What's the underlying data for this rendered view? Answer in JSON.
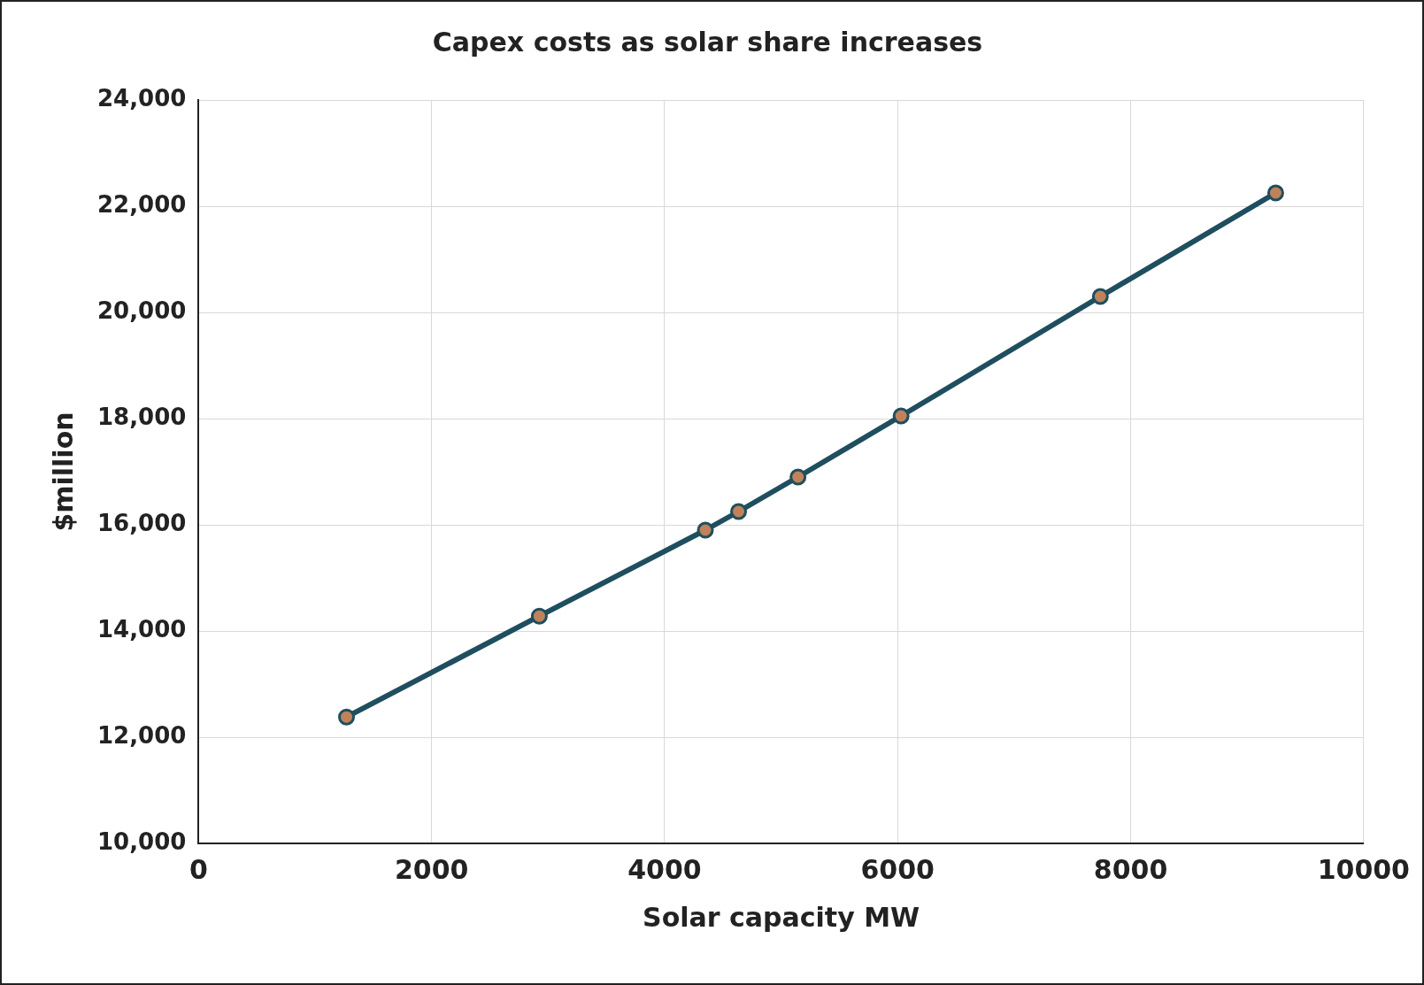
{
  "chart_data": {
    "type": "line",
    "title": "Capex costs as solar share increases",
    "xlabel": "Solar capacity MW",
    "ylabel": "$million",
    "x": [
      1270,
      2925,
      4350,
      4635,
      5145,
      6030,
      7740,
      9245
    ],
    "series": [
      {
        "color": "#1f4e5f",
        "values": [
          12380,
          14280,
          15900,
          16250,
          16900,
          18050,
          20300,
          22250
        ]
      }
    ],
    "xlim": [
      0,
      10000
    ],
    "xticks": [
      0,
      2000,
      4000,
      6000,
      8000,
      10000
    ],
    "ylim": [
      10000,
      24000
    ],
    "yticks": [
      {
        "value": 10000,
        "label": "10,000"
      },
      {
        "value": 12000,
        "label": "12,000"
      },
      {
        "value": 14000,
        "label": "14,000"
      },
      {
        "value": 16000,
        "label": "16,000"
      },
      {
        "value": 18000,
        "label": "18,000"
      },
      {
        "value": 20000,
        "label": "20,000"
      },
      {
        "value": 22000,
        "label": "22,000"
      },
      {
        "value": 24000,
        "label": "24,000"
      }
    ],
    "grid": true,
    "legend": false,
    "marker": "circle",
    "line_style": "solid"
  }
}
